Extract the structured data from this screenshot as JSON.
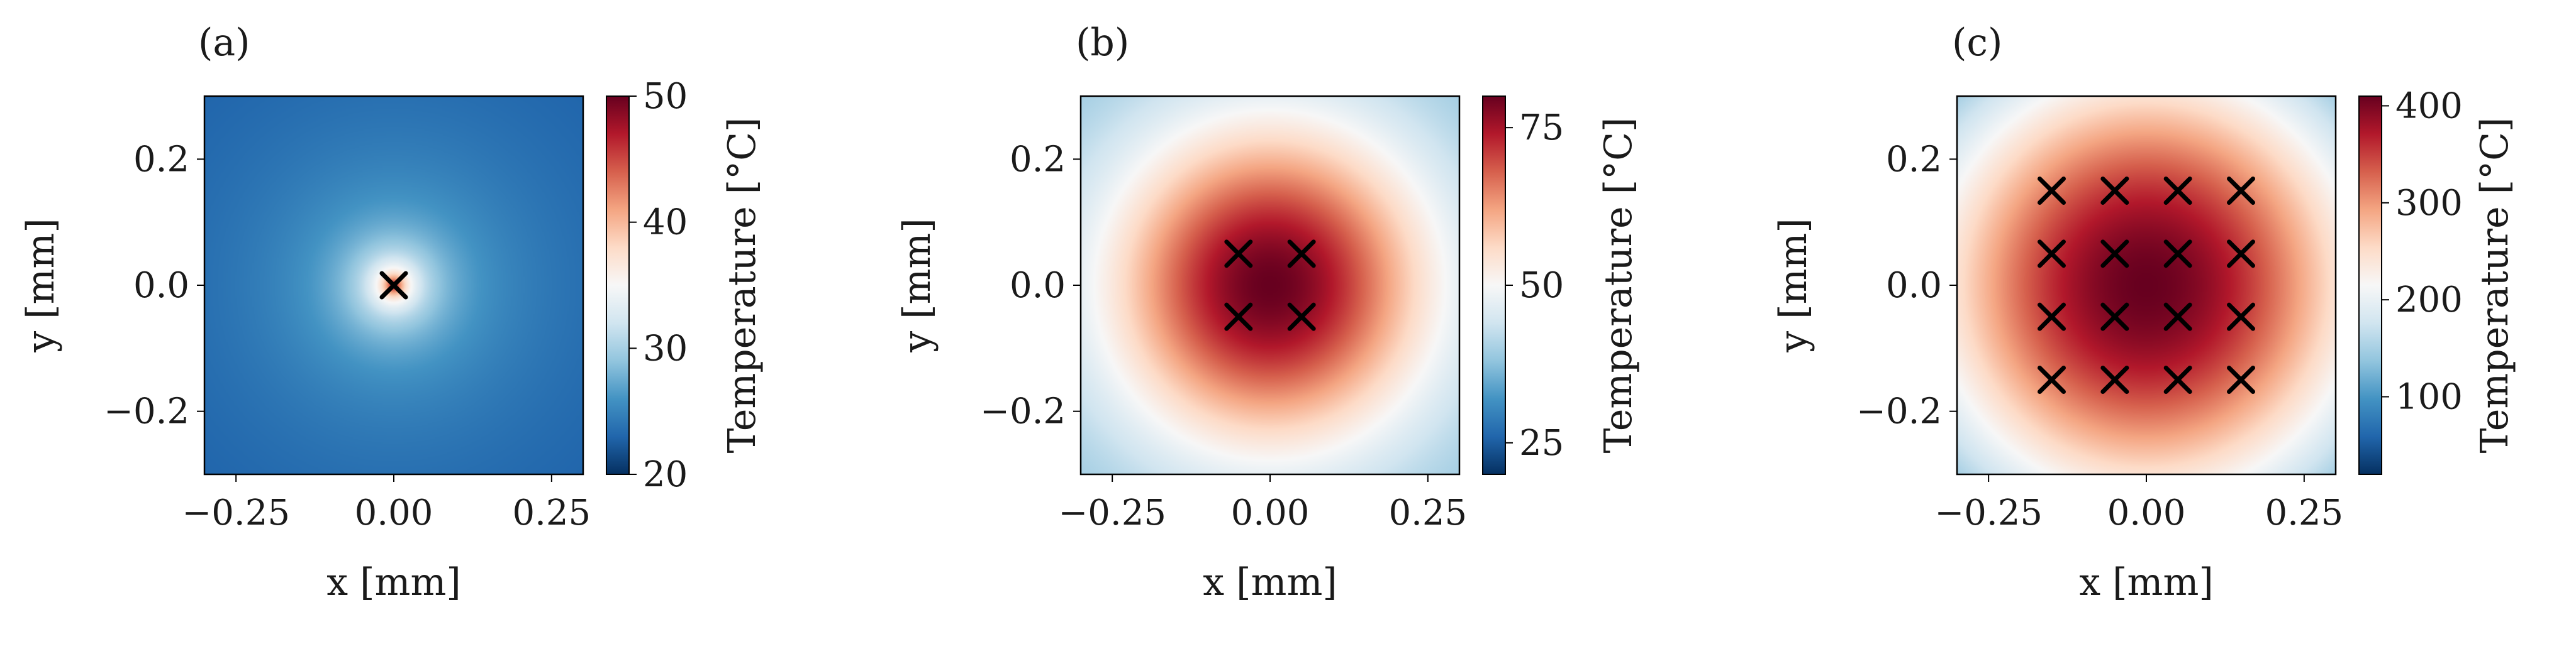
{
  "chart_data": [
    {
      "type": "heatmap",
      "panel_label": "(a)",
      "xlabel": "x [mm]",
      "ylabel": "y [mm]",
      "xlim": [
        -0.3,
        0.3
      ],
      "ylim": [
        -0.3,
        0.3
      ],
      "xticks": [
        -0.25,
        0.0,
        0.25
      ],
      "xtick_labels": [
        "−0.25",
        "0.00",
        "0.25"
      ],
      "yticks": [
        0.2,
        0.0,
        -0.2
      ],
      "ytick_labels": [
        "0.2",
        "0.0",
        "−0.2"
      ],
      "colorbar": {
        "label": "Temperature [°C]",
        "range": [
          20,
          50
        ],
        "ticks": [
          20,
          30,
          40,
          50
        ],
        "tick_labels": [
          "20",
          "30",
          "40",
          "50"
        ],
        "colormap": "RdBu_r"
      },
      "field": {
        "min": 23,
        "peak": 50,
        "spread_mm": 0.022,
        "log_decay": true
      },
      "heat_sources": [
        {
          "x": 0.0,
          "y": 0.0
        }
      ]
    },
    {
      "type": "heatmap",
      "panel_label": "(b)",
      "xlabel": "x [mm]",
      "ylabel": "y [mm]",
      "xlim": [
        -0.3,
        0.3
      ],
      "ylim": [
        -0.3,
        0.3
      ],
      "xticks": [
        -0.25,
        0.0,
        0.25
      ],
      "xtick_labels": [
        "−0.25",
        "0.00",
        "0.25"
      ],
      "yticks": [
        0.2,
        0.0,
        -0.2
      ],
      "ytick_labels": [
        "0.2",
        "0.0",
        "−0.2"
      ],
      "colorbar": {
        "label": "Temperature [°C]",
        "range": [
          20,
          80
        ],
        "ticks": [
          25,
          50,
          75
        ],
        "tick_labels": [
          "25",
          "50",
          "75"
        ],
        "colormap": "RdBu_r"
      },
      "field": {
        "min": 40,
        "peak": 80,
        "spread_mm": 0.17,
        "log_decay": false
      },
      "heat_sources": [
        {
          "x": -0.05,
          "y": 0.05
        },
        {
          "x": 0.05,
          "y": 0.05
        },
        {
          "x": -0.05,
          "y": -0.05
        },
        {
          "x": 0.05,
          "y": -0.05
        }
      ]
    },
    {
      "type": "heatmap",
      "panel_label": "(c)",
      "xlabel": "x [mm]",
      "ylabel": "y [mm]",
      "xlim": [
        -0.3,
        0.3
      ],
      "ylim": [
        -0.3,
        0.3
      ],
      "xticks": [
        -0.25,
        0.0,
        0.25
      ],
      "xtick_labels": [
        "−0.25",
        "0.00",
        "0.25"
      ],
      "yticks": [
        0.2,
        0.0,
        -0.2
      ],
      "ytick_labels": [
        "0.2",
        "0.0",
        "−0.2"
      ],
      "colorbar": {
        "label": "Temperature [°C]",
        "range": [
          20,
          410
        ],
        "ticks": [
          100,
          200,
          300,
          400
        ],
        "tick_labels": [
          "100",
          "200",
          "300",
          "400"
        ],
        "colormap": "RdBu_r"
      },
      "field": {
        "min": 150,
        "peak": 410,
        "spread_mm": 0.26,
        "log_decay": false
      },
      "heat_sources": [
        {
          "x": -0.15,
          "y": 0.15
        },
        {
          "x": -0.05,
          "y": 0.15
        },
        {
          "x": 0.05,
          "y": 0.15
        },
        {
          "x": 0.15,
          "y": 0.15
        },
        {
          "x": -0.15,
          "y": 0.05
        },
        {
          "x": -0.05,
          "y": 0.05
        },
        {
          "x": 0.05,
          "y": 0.05
        },
        {
          "x": 0.15,
          "y": 0.05
        },
        {
          "x": -0.15,
          "y": -0.05
        },
        {
          "x": -0.05,
          "y": -0.05
        },
        {
          "x": 0.05,
          "y": -0.05
        },
        {
          "x": 0.15,
          "y": -0.05
        },
        {
          "x": -0.15,
          "y": -0.15
        },
        {
          "x": -0.05,
          "y": -0.15
        },
        {
          "x": 0.05,
          "y": -0.15
        },
        {
          "x": 0.15,
          "y": -0.15
        }
      ]
    }
  ]
}
